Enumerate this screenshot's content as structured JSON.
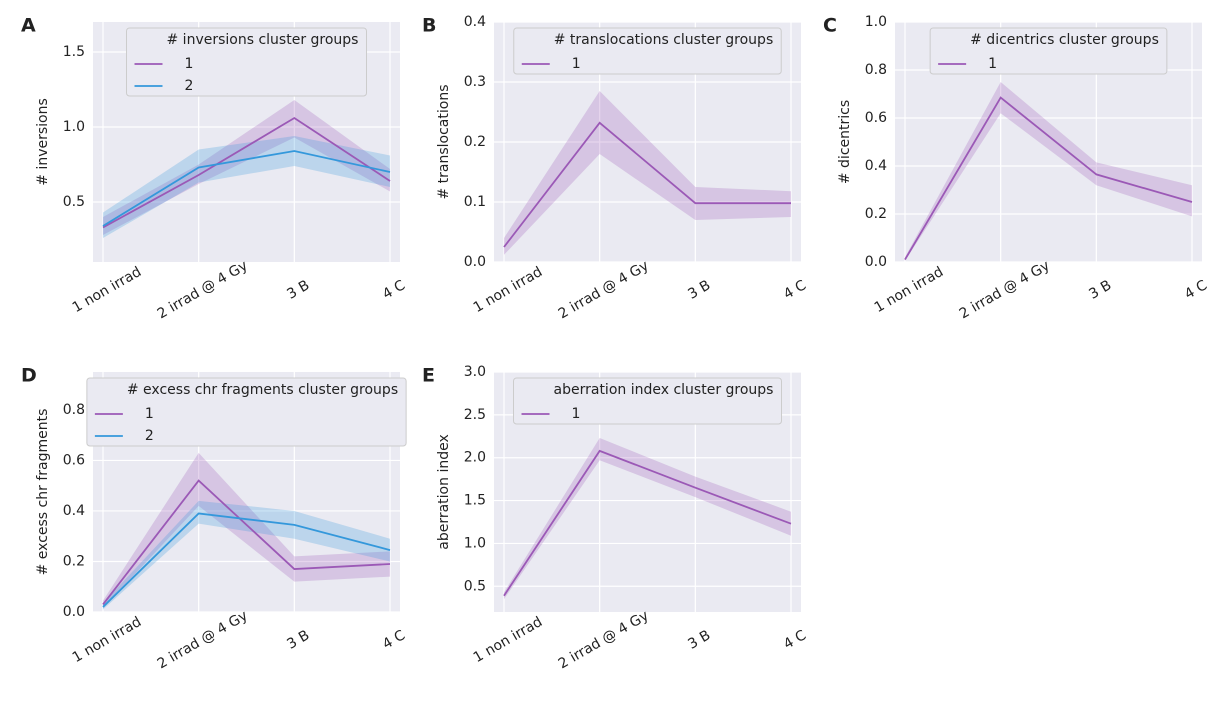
{
  "chart_data": [
    {
      "type": "line",
      "panel": "A",
      "ylabel": "# inversions",
      "legend_title": "# inversions cluster groups",
      "legend": "upper center",
      "grid": true,
      "categories": [
        "1 non irrad",
        "2 irrad @ 4 Gy",
        "3 B",
        "4 C"
      ],
      "series": [
        {
          "name": "1",
          "color": "#9b59b6",
          "values": [
            0.33,
            0.68,
            1.06,
            0.64
          ],
          "lower": [
            0.28,
            0.62,
            0.93,
            0.57
          ],
          "upper": [
            0.4,
            0.75,
            1.18,
            0.72
          ]
        },
        {
          "name": "2",
          "color": "#3498db",
          "values": [
            0.34,
            0.73,
            0.84,
            0.7
          ],
          "lower": [
            0.26,
            0.63,
            0.74,
            0.6
          ],
          "upper": [
            0.43,
            0.85,
            0.94,
            0.81
          ]
        }
      ],
      "ylim": [
        0.1,
        1.7
      ],
      "yticks": [
        0.5,
        {
          "value": 1,
          "label": "1.0"
        },
        1.5
      ]
    },
    {
      "type": "line",
      "panel": "B",
      "ylabel": "# translocations",
      "legend_title": "# translocations cluster groups",
      "legend": "upper center",
      "grid": true,
      "categories": [
        "1 non irrad",
        "2 irrad @ 4 Gy",
        "3 B",
        "4 C"
      ],
      "series": [
        {
          "name": "1",
          "color": "#9b59b6",
          "values": [
            0.025,
            0.232,
            0.098,
            0.098
          ],
          "lower": [
            0.012,
            0.18,
            0.07,
            0.075
          ],
          "upper": [
            0.04,
            0.285,
            0.125,
            0.118
          ]
        }
      ],
      "ylim": [
        0,
        0.4
      ],
      "yticks": [
        {
          "value": 0,
          "label": "0.0"
        },
        0.1,
        0.2,
        0.3,
        0.4
      ]
    },
    {
      "type": "line",
      "panel": "C",
      "ylabel": "# dicentrics",
      "legend_title": "# dicentrics cluster groups",
      "legend": "upper center",
      "grid": true,
      "categories": [
        "1 non irrad",
        "2 irrad @ 4 Gy",
        "3 B",
        "4 C"
      ],
      "series": [
        {
          "name": "1",
          "color": "#9b59b6",
          "values": [
            0.01,
            0.685,
            0.365,
            0.25
          ],
          "lower": [
            0.005,
            0.62,
            0.32,
            0.19
          ],
          "upper": [
            0.02,
            0.75,
            0.415,
            0.32
          ]
        }
      ],
      "ylim": [
        0,
        1
      ],
      "yticks": [
        {
          "value": 0,
          "label": "0.0"
        },
        0.2,
        0.4,
        0.6,
        0.8,
        {
          "value": 1,
          "label": "1.0"
        }
      ]
    },
    {
      "type": "line",
      "panel": "D",
      "ylabel": "# excess chr fragments",
      "legend_title": "# excess chr fragments cluster groups",
      "legend": "upper center",
      "grid": true,
      "categories": [
        "1 non irrad",
        "2 irrad @ 4 Gy",
        "3 B",
        "4 C"
      ],
      "series": [
        {
          "name": "1",
          "color": "#9b59b6",
          "values": [
            0.03,
            0.52,
            0.17,
            0.19
          ],
          "lower": [
            0.015,
            0.42,
            0.12,
            0.14
          ],
          "upper": [
            0.045,
            0.63,
            0.22,
            0.24
          ]
        },
        {
          "name": "2",
          "color": "#3498db",
          "values": [
            0.02,
            0.39,
            0.345,
            0.245
          ],
          "lower": [
            0.01,
            0.35,
            0.29,
            0.2
          ],
          "upper": [
            0.035,
            0.44,
            0.4,
            0.29
          ]
        }
      ],
      "ylim": [
        0,
        0.95
      ],
      "yticks": [
        {
          "value": 0,
          "label": "0.0"
        },
        0.2,
        0.4,
        0.6,
        0.8
      ]
    },
    {
      "type": "line",
      "panel": "E",
      "ylabel": "aberration index",
      "legend_title": "aberration index cluster groups",
      "legend": "upper center",
      "grid": true,
      "categories": [
        "1 non irrad",
        "2 irrad @ 4 Gy",
        "3 B",
        "4 C"
      ],
      "series": [
        {
          "name": "1",
          "color": "#9b59b6",
          "values": [
            0.39,
            2.08,
            1.65,
            1.23
          ],
          "lower": [
            0.35,
            1.97,
            1.54,
            1.09
          ],
          "upper": [
            0.43,
            2.23,
            1.78,
            1.37
          ]
        }
      ],
      "ylim": [
        0.2,
        3.0
      ],
      "yticks": [
        0.5,
        {
          "value": 1,
          "label": "1.0"
        },
        1.5,
        {
          "value": 2,
          "label": "2.0"
        },
        2.5,
        {
          "value": 3,
          "label": "3.0"
        }
      ]
    }
  ]
}
